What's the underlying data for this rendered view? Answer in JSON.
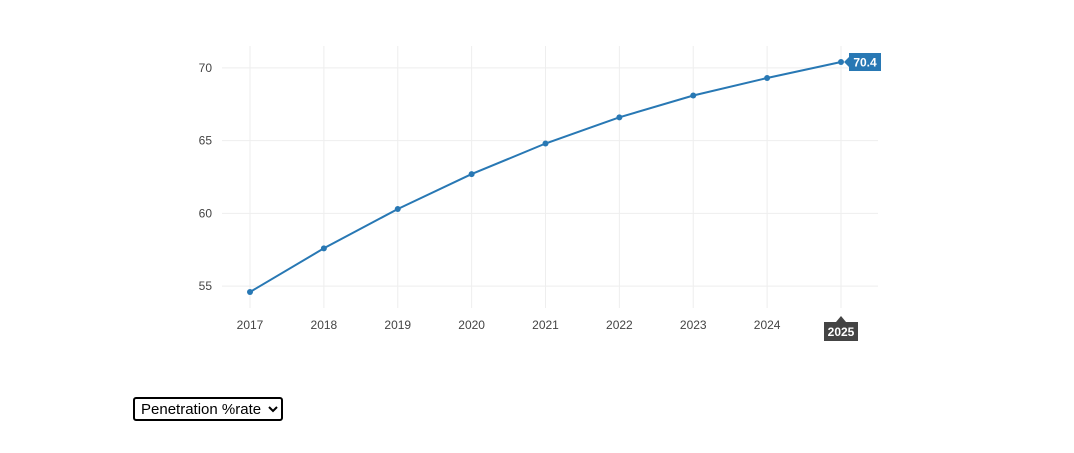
{
  "chart_data": {
    "type": "line",
    "x": [
      2017,
      2018,
      2019,
      2020,
      2021,
      2022,
      2023,
      2024,
      2025
    ],
    "series": [
      {
        "values": [
          54.6,
          57.6,
          60.3,
          62.7,
          64.8,
          66.6,
          68.1,
          69.3,
          70.4
        ]
      }
    ],
    "xlim": [
      2017,
      2025
    ],
    "ylim": [
      53.5,
      71.5
    ],
    "yticks": [
      55,
      60,
      65,
      70
    ],
    "grid": true,
    "legend": "none",
    "colors": {
      "line": "#2878b4",
      "grid": "#eeeeee",
      "hover_y_bg": "#2878b4",
      "hover_x_bg": "#444444"
    },
    "hover": {
      "index": 8,
      "y_label": "70.4",
      "x_label": "2025"
    }
  },
  "controls": {
    "metric_select": {
      "selected": "Penetration %rate",
      "options": [
        "Penetration %rate"
      ]
    }
  }
}
